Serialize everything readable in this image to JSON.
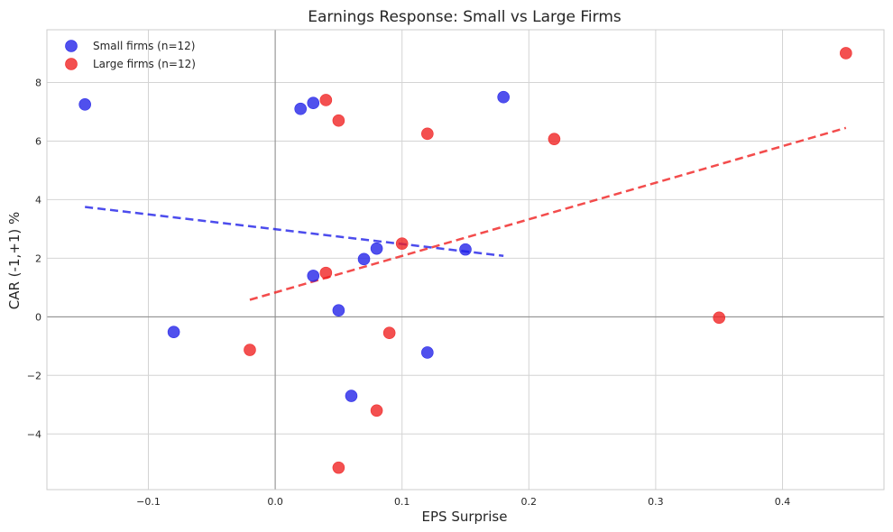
{
  "chart_data": {
    "type": "scatter",
    "title": "Earnings Response: Small vs Large Firms",
    "xlabel": "EPS Surprise",
    "ylabel": "CAR (-1,+1) %",
    "xlim": [
      -0.18,
      0.48
    ],
    "ylim": [
      -5.9,
      9.8
    ],
    "xticks": [
      -0.1,
      0.0,
      0.1,
      0.2,
      0.3,
      0.4
    ],
    "xtick_labels": [
      "−0.1",
      "0.0",
      "0.1",
      "0.2",
      "0.3",
      "0.4"
    ],
    "yticks": [
      -4,
      -2,
      0,
      2,
      4,
      6,
      8
    ],
    "ytick_labels": [
      "−4",
      "−2",
      "0",
      "2",
      "4",
      "6",
      "8"
    ],
    "grid": true,
    "legend_position": "top-left",
    "series": [
      {
        "name": "Small firms (n=12)",
        "color": "#1f1fe8",
        "points": [
          [
            -0.15,
            7.25
          ],
          [
            -0.08,
            -0.52
          ],
          [
            0.02,
            7.1
          ],
          [
            0.03,
            7.3
          ],
          [
            0.03,
            1.4
          ],
          [
            0.05,
            0.22
          ],
          [
            0.06,
            -2.7
          ],
          [
            0.07,
            1.97
          ],
          [
            0.08,
            2.33
          ],
          [
            0.12,
            -1.22
          ],
          [
            0.15,
            2.3
          ],
          [
            0.18,
            7.5
          ]
        ],
        "trend": {
          "x": [
            -0.15,
            0.18
          ],
          "y": [
            3.75,
            2.08
          ]
        }
      },
      {
        "name": "Large firms (n=12)",
        "color": "#f01f1f",
        "points": [
          [
            -0.02,
            -1.13
          ],
          [
            0.04,
            7.4
          ],
          [
            0.04,
            1.5
          ],
          [
            0.05,
            6.7
          ],
          [
            0.05,
            -5.15
          ],
          [
            0.08,
            -3.2
          ],
          [
            0.09,
            -0.55
          ],
          [
            0.1,
            2.5
          ],
          [
            0.12,
            6.25
          ],
          [
            0.22,
            6.07
          ],
          [
            0.35,
            -0.03
          ],
          [
            0.45,
            9.0
          ]
        ],
        "trend": {
          "x": [
            -0.02,
            0.45
          ],
          "y": [
            0.58,
            6.45
          ]
        }
      }
    ]
  }
}
